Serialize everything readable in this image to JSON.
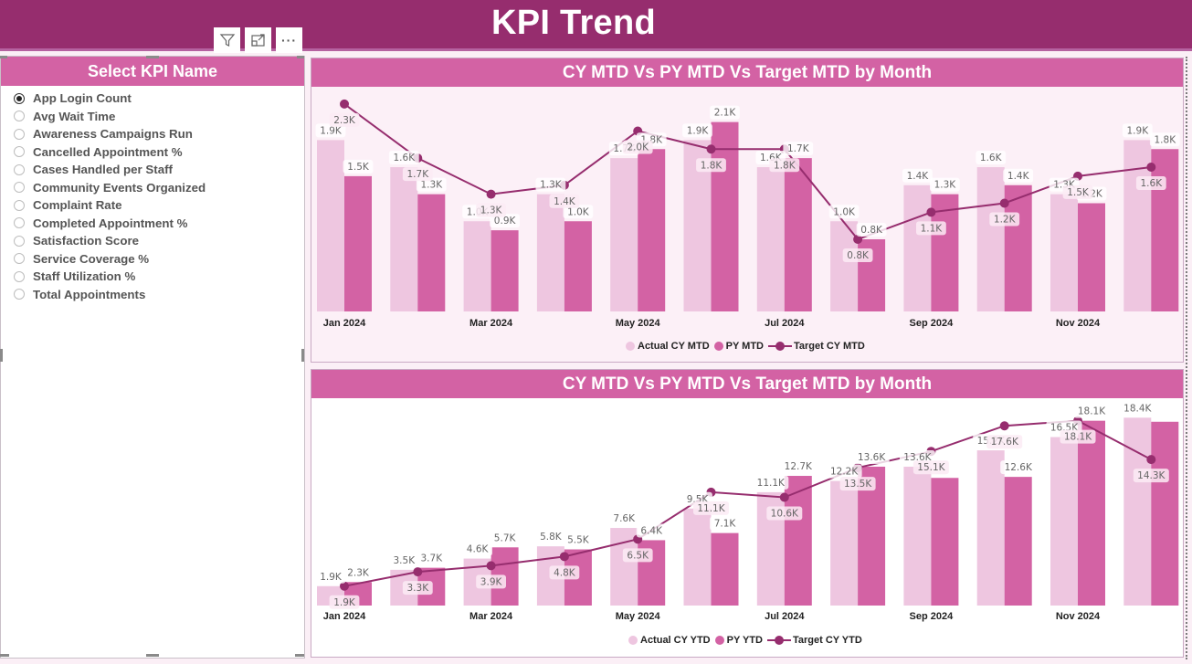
{
  "header": {
    "title": "KPI Trend"
  },
  "visual_icons": [
    {
      "name": "filter-icon"
    },
    {
      "name": "focus-mode-icon"
    },
    {
      "name": "more-options-icon",
      "label": "···"
    }
  ],
  "slicer": {
    "title": "Select KPI Name",
    "selected": "App Login Count",
    "items": [
      "App Login Count",
      "Avg Wait Time",
      "Awareness Campaigns Run",
      "Cancelled Appointment %",
      "Cases Handled per Staff",
      "Community Events Organized",
      "Complaint Rate",
      "Completed Appointment %",
      "Satisfaction Score",
      "Service Coverage %",
      "Staff Utilization %",
      "Total Appointments"
    ]
  },
  "colors": {
    "header_bg": "#962D6E",
    "card_header": "#D362A4",
    "actual": "#EEC6E0",
    "py": "#D362A4",
    "target": "#962D6E"
  },
  "chart_data": [
    {
      "type": "bar",
      "title": "CY MTD Vs PY MTD Vs Target MTD by Month",
      "categories": [
        "Jan 2024",
        "Feb 2024",
        "Mar 2024",
        "Apr 2024",
        "May 2024",
        "Jun 2024",
        "Jul 2024",
        "Aug 2024",
        "Sep 2024",
        "Oct 2024",
        "Nov 2024",
        "Dec 2024"
      ],
      "x_tick_labels": [
        "Jan 2024",
        "",
        "Mar 2024",
        "",
        "May 2024",
        "",
        "Jul 2024",
        "",
        "Sep 2024",
        "",
        "Nov 2024",
        ""
      ],
      "unit": "K",
      "ylim": [
        0,
        2.4
      ],
      "series": [
        {
          "name": "Actual CY MTD",
          "kind": "bar",
          "values": [
            1.9,
            1.6,
            1.0,
            1.3,
            1.7,
            1.9,
            1.6,
            1.0,
            1.4,
            1.6,
            1.3,
            1.9
          ]
        },
        {
          "name": "PY MTD",
          "kind": "bar",
          "values": [
            1.5,
            1.3,
            0.9,
            1.0,
            1.8,
            2.1,
            1.7,
            0.8,
            1.3,
            1.4,
            1.2,
            1.8
          ]
        },
        {
          "name": "Target CY MTD",
          "kind": "line",
          "values": [
            2.3,
            1.7,
            1.3,
            1.4,
            2.0,
            1.8,
            1.8,
            0.8,
            1.1,
            1.2,
            1.5,
            1.6
          ]
        }
      ],
      "legend": [
        "Actual CY MTD",
        "PY MTD",
        "Target CY MTD"
      ],
      "legend_position": "bottom-center"
    },
    {
      "type": "bar",
      "title": "CY MTD Vs PY MTD Vs Target MTD by Month",
      "categories": [
        "Jan 2024",
        "Feb 2024",
        "Mar 2024",
        "Apr 2024",
        "May 2024",
        "Jun 2024",
        "Jul 2024",
        "Aug 2024",
        "Sep 2024",
        "Oct 2024",
        "Nov 2024",
        "Dec 2024"
      ],
      "x_tick_labels": [
        "Jan 2024",
        "",
        "Mar 2024",
        "",
        "May 2024",
        "",
        "Jul 2024",
        "",
        "Sep 2024",
        "",
        "Nov 2024",
        ""
      ],
      "unit": "K",
      "ylim": [
        0,
        19.5
      ],
      "series": [
        {
          "name": "Actual CY YTD",
          "kind": "bar",
          "values": [
            1.9,
            3.5,
            4.6,
            5.8,
            7.6,
            9.5,
            11.1,
            12.2,
            13.6,
            15.2,
            16.5,
            18.4
          ]
        },
        {
          "name": "PY YTD",
          "kind": "bar",
          "values": [
            2.3,
            3.7,
            5.7,
            5.5,
            6.4,
            7.1,
            12.7,
            13.6,
            12.5,
            12.6,
            18.1,
            18.0
          ],
          "hidden_labels": [
            8,
            11
          ]
        },
        {
          "name": "Target CY YTD",
          "kind": "line",
          "values": [
            1.9,
            3.3,
            3.9,
            4.8,
            6.5,
            11.1,
            10.6,
            13.5,
            15.1,
            17.6,
            18.1,
            14.3
          ]
        }
      ],
      "legend": [
        "Actual CY YTD",
        "PY YTD",
        "Target CY YTD"
      ],
      "legend_position": "bottom-center"
    }
  ]
}
